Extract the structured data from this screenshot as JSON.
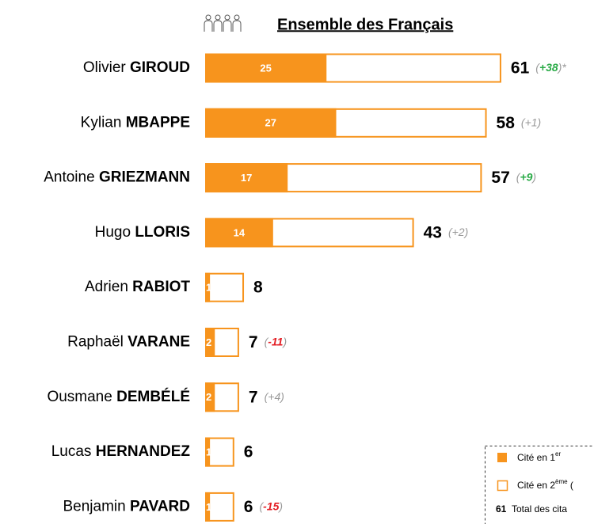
{
  "chart_data": {
    "type": "bar",
    "title": "Ensemble des Français",
    "categories": [
      [
        "Olivier",
        "GIROUD"
      ],
      [
        "Kylian",
        "MBAPPE"
      ],
      [
        "Antoine",
        "GRIEZMANN"
      ],
      [
        "Hugo",
        "LLORIS"
      ],
      [
        "Adrien",
        "RABIOT"
      ],
      [
        "Raphaël",
        "VARANE"
      ],
      [
        "Ousmane",
        "DEMBÉLÉ"
      ],
      [
        "Lucas",
        "HERNANDEZ"
      ],
      [
        "Benjamin",
        "PAVARD"
      ]
    ],
    "series": [
      {
        "name": "Cité en 1",
        "name_sup": "er",
        "color": "#f7941d",
        "values": [
          25,
          27,
          17,
          14,
          1,
          2,
          2,
          1,
          1
        ]
      },
      {
        "name": "Cité en 2",
        "name_sup": "ème",
        "name_rest": " (",
        "color": "#f7941d",
        "values": [
          61,
          58,
          57,
          43,
          8,
          7,
          7,
          6,
          6
        ]
      }
    ],
    "total_legend": [
      "61",
      "Total des cita"
    ],
    "changes": [
      38,
      1,
      9,
      2,
      null,
      -11,
      4,
      null,
      -15
    ],
    "change_labels": [
      [
        "(",
        "+38",
        ")*"
      ],
      [
        "(",
        "+1",
        ")"
      ],
      [
        "(",
        "+9",
        ")"
      ],
      [
        "(",
        "+2",
        ")"
      ],
      null,
      [
        "(",
        "-11",
        ")"
      ],
      [
        "(",
        "+4",
        ")"
      ],
      null,
      [
        "(",
        "-15",
        ")"
      ]
    ],
    "change_colors": [
      "#2bab48",
      "#999999",
      "#2bab48",
      "#999999",
      null,
      "#e31e24",
      "#999999",
      null,
      "#e31e24"
    ],
    "change_bold": [
      true,
      false,
      true,
      false,
      null,
      true,
      false,
      null,
      true
    ]
  }
}
